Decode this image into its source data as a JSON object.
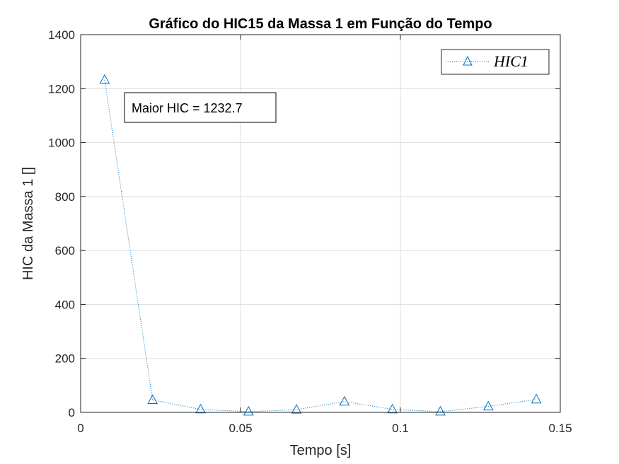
{
  "chart_data": {
    "type": "line",
    "title": "Gráfico do HIC15 da Massa 1 em Função do Tempo",
    "xlabel": "Tempo [s]",
    "ylabel": "HIC da Massa 1 []",
    "xlim": [
      0,
      0.15
    ],
    "ylim": [
      0,
      1400
    ],
    "xticks": [
      0,
      0.05,
      0.1,
      0.15
    ],
    "xtick_labels": [
      "0",
      "0.05",
      "0.1",
      "0.15"
    ],
    "yticks": [
      0,
      200,
      400,
      600,
      800,
      1000,
      1200,
      1400
    ],
    "ytick_labels": [
      "0",
      "200",
      "400",
      "600",
      "800",
      "1000",
      "1200",
      "1400"
    ],
    "grid": true,
    "legend_position": "top-right",
    "series": [
      {
        "name": "HIC1",
        "color": "#0072BD",
        "marker": "triangle",
        "line_style": "dotted",
        "x": [
          0.0075,
          0.0225,
          0.0375,
          0.0525,
          0.0675,
          0.0825,
          0.0975,
          0.1125,
          0.1275,
          0.1425
        ],
        "y": [
          1232.7,
          46,
          11,
          3,
          10,
          40,
          11,
          3,
          22,
          48
        ]
      }
    ],
    "annotation": {
      "text": "Maior HIC = 1232.7"
    }
  }
}
